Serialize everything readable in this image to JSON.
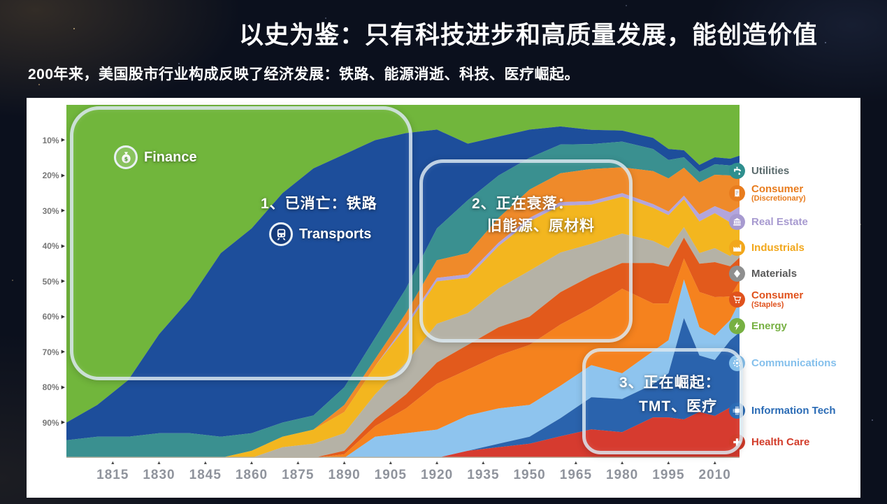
{
  "slide": {
    "title": "以史为鉴：只有科技进步和高质量发展，能创造价值",
    "subtitle": "200年来，美国股市行业构成反映了经济发展：铁路、能源消逝、科技、医疗崛起。"
  },
  "annotations": {
    "box1": {
      "line1": "1、已消亡：铁路"
    },
    "box2": {
      "line1": "2、正在衰落：",
      "line2": "旧能源、原材料"
    },
    "box3": {
      "line1": "3、正在崛起：",
      "line2": "TMT、医疗"
    }
  },
  "chart_labels": {
    "finance": "Finance",
    "transports": "Transports"
  },
  "legend": {
    "position": "right",
    "items": [
      {
        "key": "utilities",
        "label": "Utilities",
        "sublabel": "",
        "color": "#2f8f8e",
        "label_color": "#5b6b6d",
        "icon": "faucet-icon"
      },
      {
        "key": "consumer-discretionary",
        "label": "Consumer",
        "sublabel": "(Discretionary)",
        "color": "#e87c1e",
        "label_color": "#e87c1e",
        "icon": "price-tag-icon"
      },
      {
        "key": "real-estate",
        "label": "Real Estate",
        "sublabel": "",
        "color": "#a79ad0",
        "label_color": "#a79ad0",
        "icon": "bank-building-icon"
      },
      {
        "key": "industrials",
        "label": "Industrials",
        "sublabel": "",
        "color": "#f2a71b",
        "label_color": "#f2a71b",
        "icon": "factory-icon"
      },
      {
        "key": "materials",
        "label": "Materials",
        "sublabel": "",
        "color": "#8f8f8f",
        "label_color": "#595959",
        "icon": "diamond-icon"
      },
      {
        "key": "consumer-staples",
        "label": "Consumer",
        "sublabel": "(Staples)",
        "color": "#e0521d",
        "label_color": "#e0521d",
        "icon": "shopping-cart-icon"
      },
      {
        "key": "energy",
        "label": "Energy",
        "sublabel": "",
        "color": "#77b043",
        "label_color": "#77b043",
        "icon": "lightning-icon"
      },
      {
        "key": "communications",
        "label": "Communications",
        "sublabel": "",
        "color": "#85c0ec",
        "label_color": "#85c0ec",
        "icon": "network-icon"
      },
      {
        "key": "information-tech",
        "label": "Information Tech",
        "sublabel": "",
        "color": "#2a6bb5",
        "label_color": "#2a6bb5",
        "icon": "microchip-icon"
      },
      {
        "key": "health-care",
        "label": "Health Care",
        "sublabel": "",
        "color": "#d23c2a",
        "label_color": "#d23c2a",
        "icon": "medical-cross-icon"
      }
    ]
  },
  "chart_data": {
    "type": "area",
    "stacked": true,
    "normalized_percent": true,
    "y_direction": "top-to-bottom",
    "x_range": [
      1800,
      2018
    ],
    "y_range": [
      0,
      100
    ],
    "x_axis_ticks": [
      1815,
      1830,
      1845,
      1860,
      1875,
      1890,
      1905,
      1920,
      1935,
      1950,
      1965,
      1980,
      1995,
      2010
    ],
    "y_axis_ticks": [
      "10%",
      "20%",
      "30%",
      "40%",
      "50%",
      "60%",
      "70%",
      "80%",
      "90%"
    ],
    "x": [
      1800,
      1810,
      1820,
      1830,
      1840,
      1850,
      1860,
      1870,
      1880,
      1890,
      1900,
      1910,
      1920,
      1930,
      1940,
      1950,
      1960,
      1970,
      1980,
      1990,
      1995,
      2000,
      2005,
      2010,
      2015,
      2018
    ],
    "series": [
      {
        "key": "finance",
        "name": "Finance",
        "color": "#71b63c",
        "values": [
          90,
          85,
          78,
          65,
          55,
          42,
          35,
          25,
          18,
          14,
          10,
          8,
          7,
          11,
          9,
          7,
          6,
          7,
          7,
          9,
          12,
          13,
          17,
          15,
          16,
          15
        ]
      },
      {
        "key": "transports",
        "name": "Transports",
        "color": "#1d4e9b",
        "values": [
          5,
          9,
          16,
          28,
          38,
          52,
          58,
          65,
          70,
          66,
          56,
          44,
          28,
          16,
          11,
          8,
          5,
          4,
          3,
          3,
          3,
          2,
          2,
          2,
          2,
          2
        ]
      },
      {
        "key": "utilities",
        "name": "Utilities",
        "color": "#3a9090",
        "values": [
          5,
          6,
          6,
          7,
          7,
          6,
          5,
          4,
          4,
          5,
          6,
          7,
          9,
          15,
          12,
          9,
          8,
          7,
          7,
          6,
          5,
          3,
          3,
          3,
          3,
          3
        ]
      },
      {
        "key": "consumer-discretionary",
        "name": "Consumer (Discretionary)",
        "color": "#ef8a2a",
        "values": [
          0,
          0,
          0,
          0,
          0,
          0,
          0,
          0,
          0,
          2,
          2,
          3,
          5,
          6,
          7,
          8,
          8,
          9,
          7,
          9,
          9,
          8,
          9,
          9,
          11,
          10
        ]
      },
      {
        "key": "real-estate",
        "name": "Real Estate",
        "color": "#b3a5dc",
        "values": [
          0,
          0,
          0,
          0,
          0,
          0,
          0,
          0,
          0,
          0,
          0,
          1,
          1,
          1,
          1,
          1,
          1,
          1,
          1,
          1,
          1,
          1,
          2,
          2,
          3,
          3
        ]
      },
      {
        "key": "industrials",
        "name": "Industrials",
        "color": "#f3b61f",
        "values": [
          0,
          0,
          0,
          0,
          0,
          0,
          2,
          3,
          4,
          6,
          8,
          10,
          12,
          10,
          12,
          14,
          13,
          11,
          10,
          9,
          9,
          8,
          9,
          10,
          10,
          9
        ]
      },
      {
        "key": "materials",
        "name": "Materials",
        "color": "#b5b2a6",
        "values": [
          0,
          0,
          0,
          0,
          0,
          0,
          0,
          3,
          4,
          5,
          7,
          9,
          11,
          9,
          11,
          13,
          11,
          9,
          8,
          6,
          5,
          3,
          3,
          4,
          3,
          3
        ]
      },
      {
        "key": "consumer-staples",
        "name": "Consumer (Staples)",
        "color": "#e25a1c",
        "values": [
          0,
          0,
          0,
          0,
          0,
          0,
          0,
          0,
          0,
          1,
          2,
          4,
          6,
          7,
          8,
          8,
          9,
          9,
          7,
          11,
          10,
          6,
          8,
          10,
          9,
          7
        ]
      },
      {
        "key": "energy",
        "name": "Energy",
        "color": "#f5821e",
        "values": [
          0,
          0,
          0,
          0,
          0,
          0,
          0,
          0,
          0,
          1,
          3,
          7,
          13,
          13,
          15,
          17,
          17,
          16,
          23,
          13,
          10,
          6,
          10,
          11,
          7,
          6
        ]
      },
      {
        "key": "communications",
        "name": "Communications",
        "color": "#8ec4ee",
        "values": [
          0,
          0,
          0,
          0,
          0,
          0,
          0,
          0,
          0,
          0,
          6,
          7,
          8,
          10,
          10,
          9,
          9,
          9,
          7,
          9,
          9,
          11,
          8,
          7,
          6,
          9
        ]
      },
      {
        "key": "information-tech",
        "name": "Information Tech",
        "color": "#2a63ad",
        "values": [
          0,
          0,
          0,
          0,
          0,
          0,
          0,
          0,
          0,
          0,
          0,
          0,
          0,
          0,
          1,
          2,
          5,
          9,
          9,
          9,
          12,
          29,
          16,
          16,
          20,
          23
        ]
      },
      {
        "key": "health-care",
        "name": "Health Care",
        "color": "#d63b2f",
        "values": [
          0,
          0,
          0,
          0,
          0,
          0,
          0,
          0,
          0,
          0,
          0,
          0,
          0,
          2,
          3,
          4,
          6,
          8,
          7,
          11,
          11,
          11,
          13,
          12,
          15,
          14
        ]
      }
    ]
  }
}
